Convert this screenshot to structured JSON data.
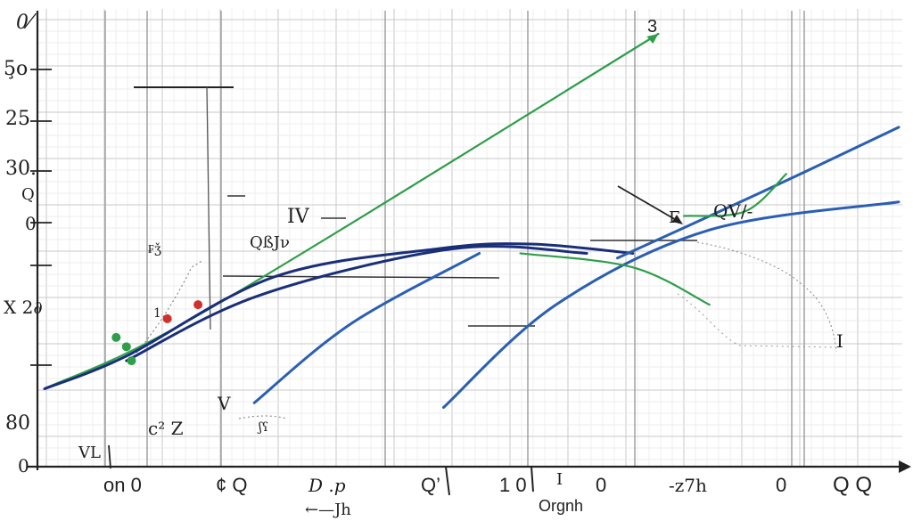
{
  "chart_data": {
    "type": "line",
    "title": "",
    "xlabel": "Orgnh",
    "x_arrow_label": "←—Jh",
    "ylabel": "",
    "grid": true,
    "y_tick_labels": [
      "0⁄",
      "5̧o",
      "25",
      "30.",
      "0",
      "X 2∂",
      "80",
      "0"
    ],
    "x_tick_labels": [
      "on 0",
      "¢ Q",
      "D .p",
      "Q’",
      "1 0",
      "0",
      "-z7h",
      "0",
      "Q Q"
    ],
    "annotations": [
      "3",
      "IV",
      "QßJν",
      "QV/-",
      "₣ǯ",
      "V",
      "c² Z",
      "VL",
      "Q",
      "I",
      "Γ",
      "1",
      "I",
      "ʃʕ"
    ],
    "colors": {
      "green": "#2e9e4a",
      "navy": "#1a2f7a",
      "blue": "#2b5fb3",
      "red": "#d0312d"
    },
    "series": [
      {
        "color": "green",
        "x": [
          0,
          3.2,
          12
        ],
        "y": [
          0.6,
          2.3,
          8.2
        ]
      },
      {
        "color": "navy",
        "x": [
          0,
          1.6,
          4.5,
          7.7,
          9.5,
          11.5
        ],
        "y": [
          0.6,
          1.3,
          3.0,
          3.6,
          3.7,
          3.5
        ]
      },
      {
        "color": "navy",
        "x": [
          1.6,
          4.2,
          8.0,
          10.6
        ],
        "y": [
          1.2,
          2.6,
          3.6,
          3.5
        ]
      },
      {
        "color": "blue",
        "x": [
          4.1,
          6.0,
          8.5
        ],
        "y": [
          0.3,
          2.0,
          3.5
        ]
      },
      {
        "color": "blue",
        "x": [
          7.8,
          10.0,
          13.0,
          16.7
        ],
        "y": [
          0.2,
          2.4,
          4.0,
          4.6
        ]
      },
      {
        "color": "blue",
        "x": [
          11.2,
          14.0,
          16.7
        ],
        "y": [
          3.4,
          4.8,
          6.2
        ]
      },
      {
        "color": "green",
        "x": [
          12.5,
          13.7,
          14.5
        ],
        "y": [
          4.3,
          4.4,
          5.2
        ]
      },
      {
        "color": "green",
        "x": [
          9.3,
          11.5,
          13.0
        ],
        "y": [
          3.5,
          3.2,
          2.4
        ]
      }
    ],
    "points": [
      {
        "x": 1.6,
        "y": 1.5,
        "color": "green"
      },
      {
        "x": 1.4,
        "y": 1.7,
        "color": "green"
      },
      {
        "x": 1.7,
        "y": 1.2,
        "color": "green"
      },
      {
        "x": 2.4,
        "y": 2.1,
        "color": "red"
      },
      {
        "x": 3.0,
        "y": 2.4,
        "color": "red"
      }
    ]
  }
}
